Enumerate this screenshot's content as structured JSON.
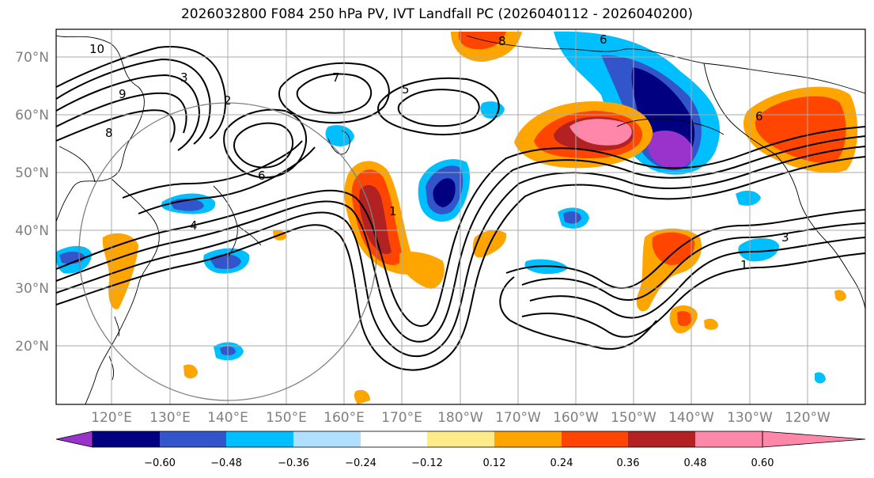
{
  "title": "2026032800 F084 250 hPa PV, IVT Landfall PC (2026040112 - 2026040200)",
  "lat_labels": [
    "70°N",
    "60°N",
    "50°N",
    "40°N",
    "30°N",
    "20°N"
  ],
  "lon_labels": [
    "120°E",
    "130°E",
    "140°E",
    "150°E",
    "160°E",
    "170°E",
    "180°W",
    "170°W",
    "160°W",
    "150°W",
    "140°W",
    "130°W",
    "120°W"
  ],
  "colorbar": {
    "ticks": [
      "−0.60",
      "−0.48",
      "−0.36",
      "−0.24",
      "−0.12",
      "0.12",
      "0.24",
      "0.36",
      "0.48",
      "0.60"
    ],
    "colors": [
      "#9933cc",
      "#000080",
      "#3355cc",
      "#00bfff",
      "#b0e0ff",
      "#ffffff",
      "#ffeb8a",
      "#ffa500",
      "#ff4500",
      "#b22222",
      "#ff88aa"
    ]
  },
  "contour_labels": [
    "10",
    "9",
    "8",
    "7",
    "6",
    "5",
    "4",
    "3",
    "2",
    "1"
  ],
  "colors": {
    "land_line": "#000000",
    "grid": "#aaaaaa",
    "circle": "#808080"
  }
}
